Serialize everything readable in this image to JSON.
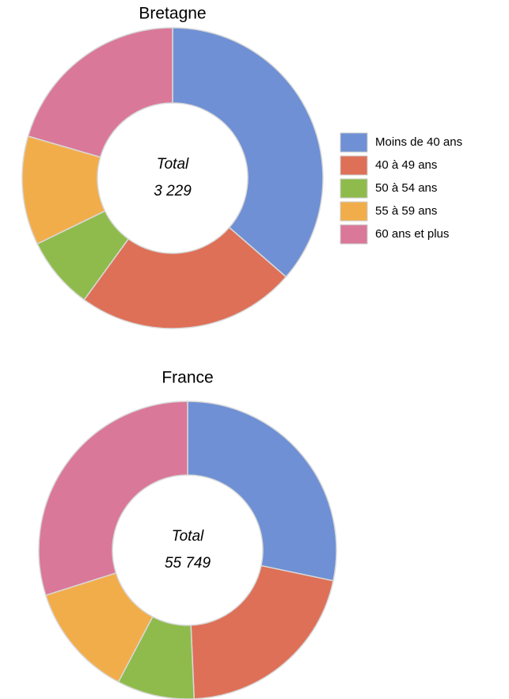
{
  "chart_data": [
    {
      "type": "donut",
      "title": "Bretagne",
      "center_label": "Total",
      "total_label": "3 229",
      "categories": [
        "Moins de 40 ans",
        "40 à 49 ans",
        "50 à 54 ans",
        "55 à 59 ans",
        "60 ans et plus"
      ],
      "colors": [
        "#6f90d4",
        "#de7058",
        "#8fbb4d",
        "#f2ad4b",
        "#da7899"
      ],
      "values": [
        36.4,
        23.6,
        7.8,
        11.7,
        20.5
      ]
    },
    {
      "type": "donut",
      "title": "France",
      "center_label": "Total",
      "total_label": "55 749",
      "values": [
        28.3,
        21,
        8.4,
        12.4,
        29.9
      ]
    }
  ]
}
